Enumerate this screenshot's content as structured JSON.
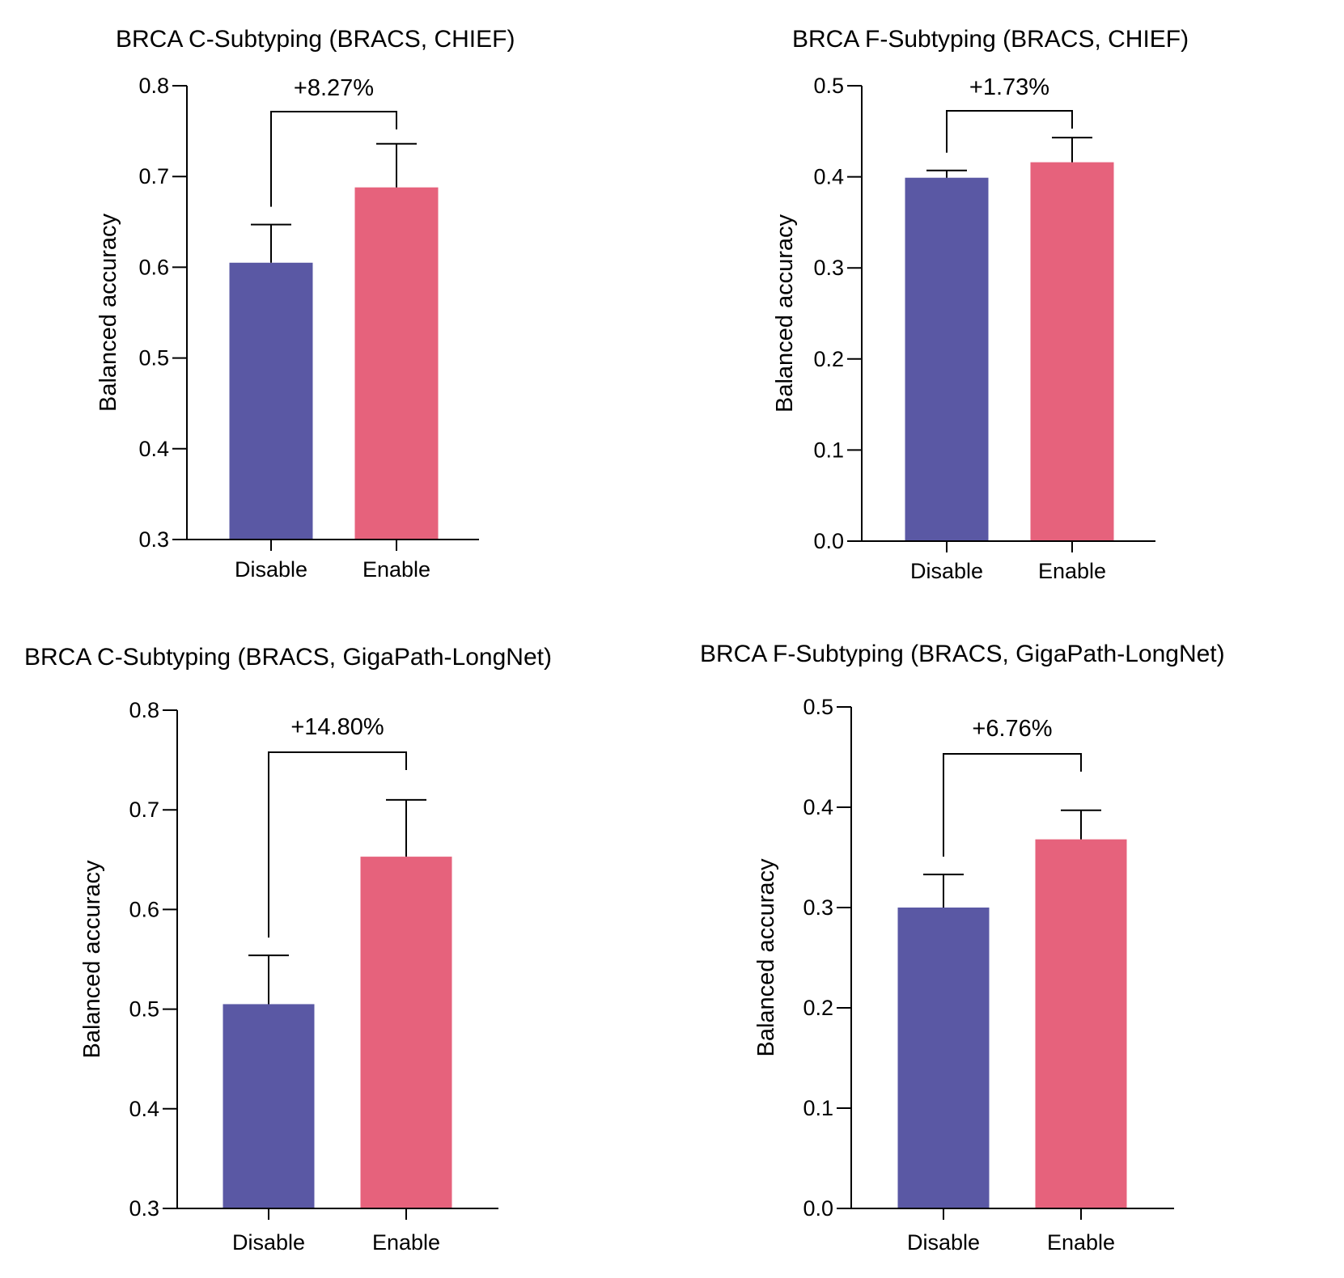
{
  "chart_data": [
    {
      "type": "bar",
      "title": "BRCA C-Subtyping (BRACS, CHIEF)",
      "ylabel": "Balanced accuracy",
      "categories": [
        "Disable",
        "Enable"
      ],
      "values": [
        0.605,
        0.688
      ],
      "errors": [
        0.042,
        0.048
      ],
      "colors": [
        "#5a58a4",
        "#e6627c"
      ],
      "ylim": [
        0.3,
        0.8
      ],
      "yticks": [
        "0.3",
        "0.4",
        "0.5",
        "0.6",
        "0.7",
        "0.8"
      ],
      "annotation": "+8.27%"
    },
    {
      "type": "bar",
      "title": "BRCA F-Subtyping (BRACS, CHIEF)",
      "ylabel": "Balanced accuracy",
      "categories": [
        "Disable",
        "Enable"
      ],
      "values": [
        0.399,
        0.416
      ],
      "errors": [
        0.008,
        0.027
      ],
      "colors": [
        "#5a58a4",
        "#e6627c"
      ],
      "ylim": [
        0.0,
        0.5
      ],
      "yticks": [
        "0.0",
        "0.1",
        "0.2",
        "0.3",
        "0.4",
        "0.5"
      ],
      "annotation": "+1.73%"
    },
    {
      "type": "bar",
      "title": "BRCA C-Subtyping (BRACS, GigaPath-LongNet)",
      "ylabel": "Balanced accuracy",
      "categories": [
        "Disable",
        "Enable"
      ],
      "values": [
        0.505,
        0.653
      ],
      "errors": [
        0.049,
        0.057
      ],
      "colors": [
        "#5a58a4",
        "#e6627c"
      ],
      "ylim": [
        0.3,
        0.8
      ],
      "yticks": [
        "0.3",
        "0.4",
        "0.5",
        "0.6",
        "0.7",
        "0.8"
      ],
      "annotation": "+14.80%"
    },
    {
      "type": "bar",
      "title": "BRCA F-Subtyping (BRACS, GigaPath-LongNet)",
      "ylabel": "Balanced accuracy",
      "categories": [
        "Disable",
        "Enable"
      ],
      "values": [
        0.3,
        0.368
      ],
      "errors": [
        0.033,
        0.029
      ],
      "colors": [
        "#5a58a4",
        "#e6627c"
      ],
      "ylim": [
        0.0,
        0.5
      ],
      "yticks": [
        "0.0",
        "0.1",
        "0.2",
        "0.3",
        "0.4",
        "0.5"
      ],
      "annotation": "+6.76%"
    }
  ]
}
